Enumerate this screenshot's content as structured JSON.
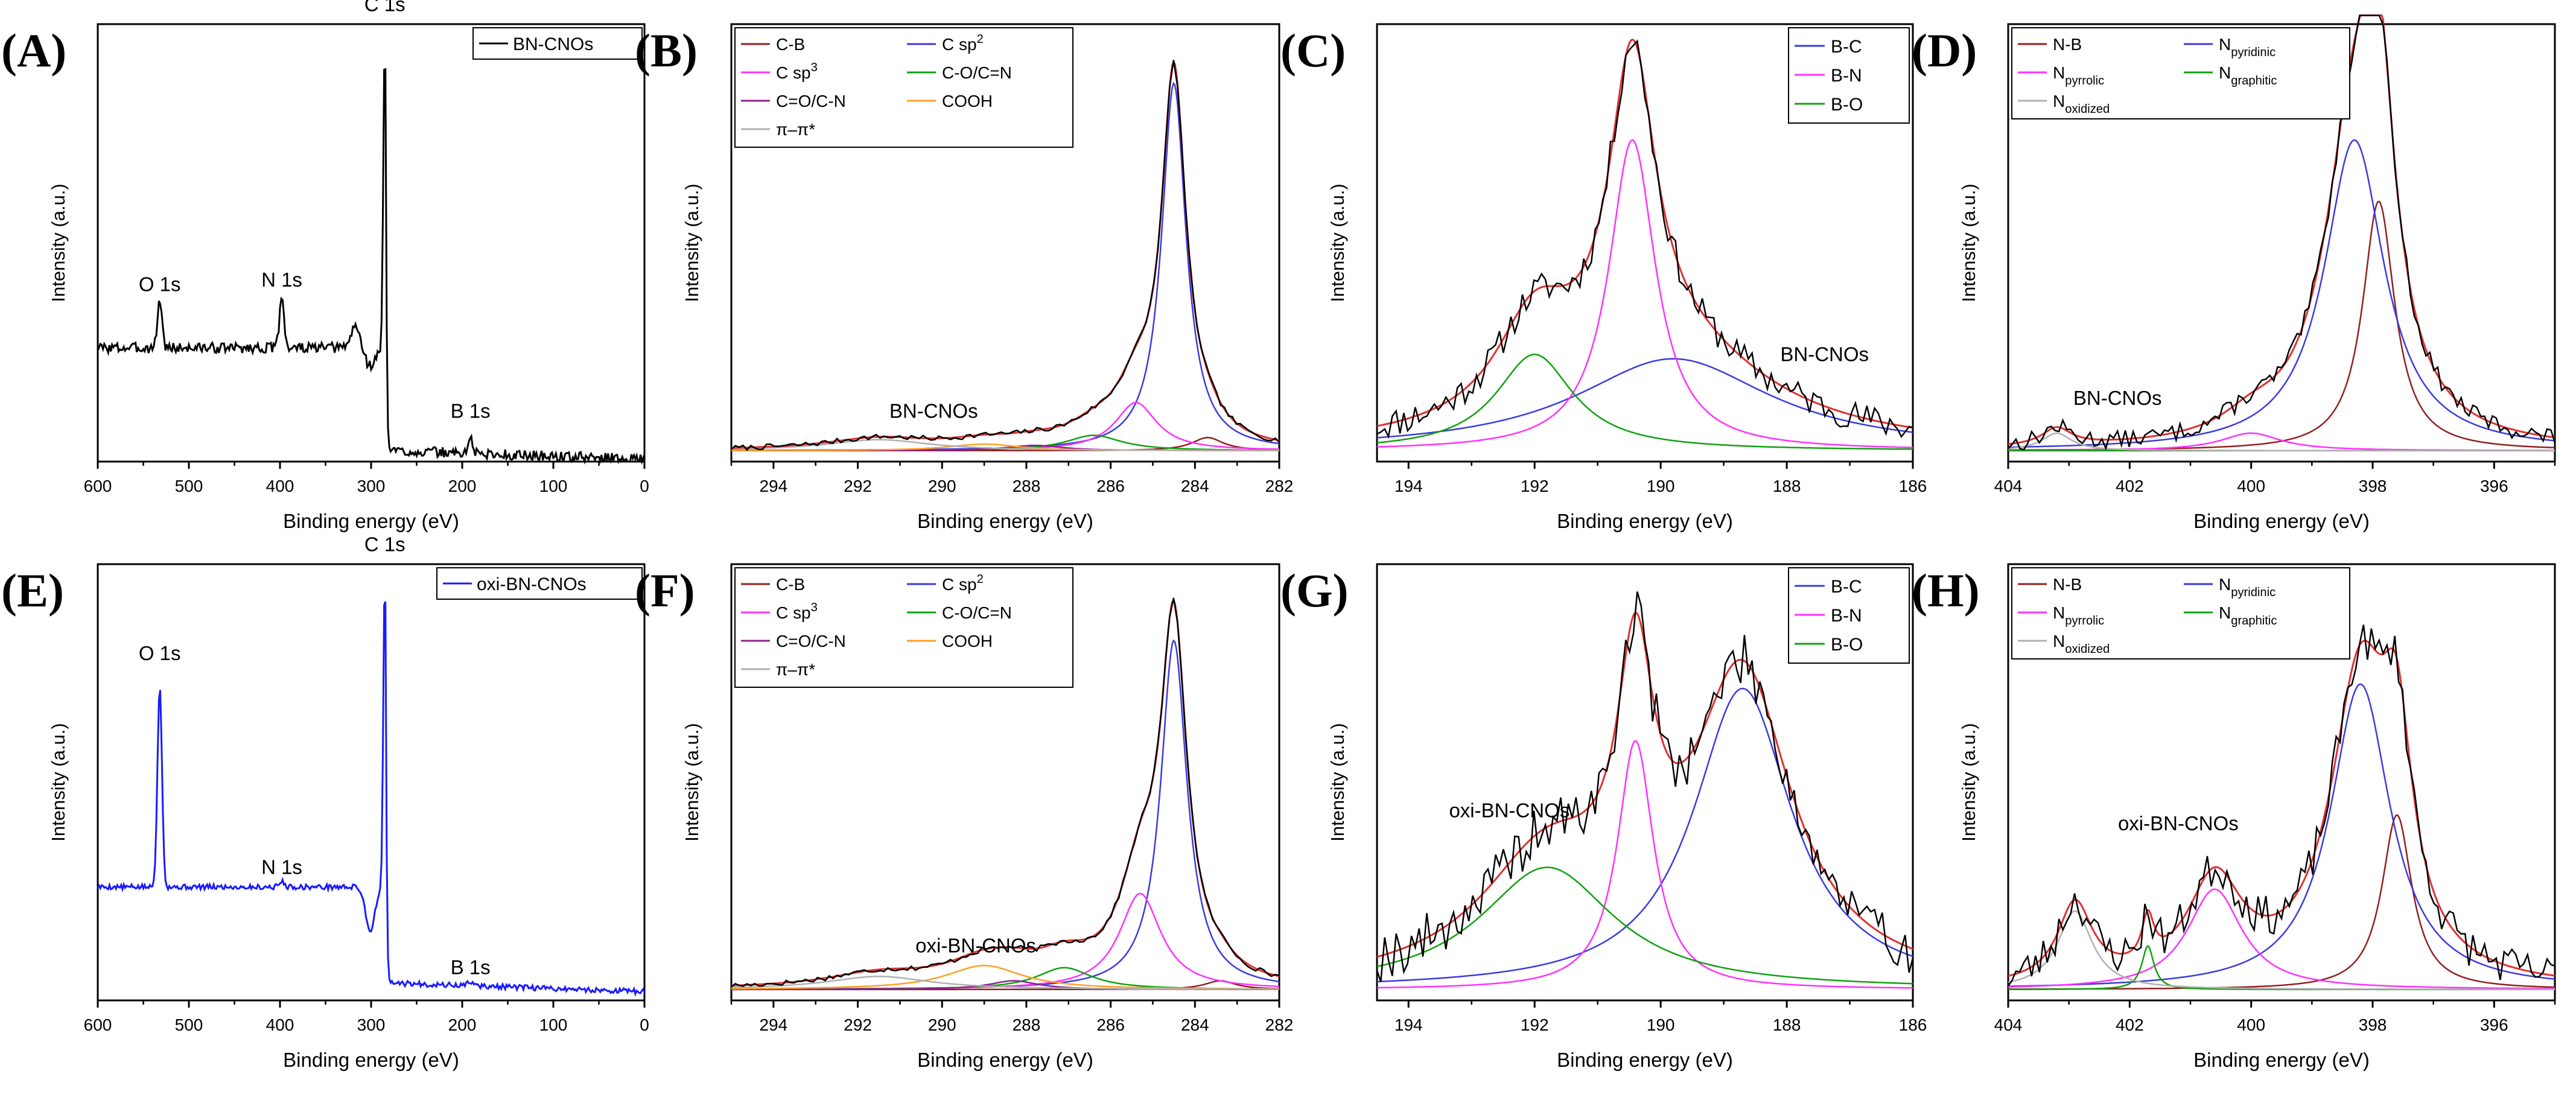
{
  "figure": {
    "palette": {
      "black": "#000000",
      "red": "#e03030",
      "blue": "#3a3ae0",
      "magenta": "#ff30ff",
      "green": "#10a010",
      "purple": "#902090",
      "orange": "#ffa020",
      "gray": "#b0b0b0",
      "survey_blue": "#1a1aff"
    }
  },
  "chart_data": [
    {
      "id": "A",
      "panel_label": "(A)",
      "type": "line",
      "xlabel": "Binding energy (eV)",
      "ylabel": "Intensity (a.u.)",
      "xlim": [
        600,
        0
      ],
      "xticks": [
        600,
        500,
        400,
        300,
        200,
        100,
        0
      ],
      "xtick_labels": [
        "600",
        "500",
        "400",
        "300",
        "200",
        "100",
        "0"
      ],
      "ylim": [
        0,
        1
      ],
      "legend_position": "top-right",
      "series": [
        {
          "name": "BN-CNOs",
          "kind": "survey",
          "color": "#000000",
          "baseline": 0.26,
          "noise": 0.012,
          "seed": 3,
          "step_at": 283,
          "right_level": 0.005,
          "peaks": [
            {
              "center": 532,
              "height": 0.11,
              "width": 2.5
            },
            {
              "center": 398,
              "height": 0.12,
              "width": 2.5
            },
            {
              "center": 317,
              "height": 0.05,
              "width": 5
            },
            {
              "center": 301,
              "height": -0.04,
              "width": 6
            },
            {
              "center": 285,
              "height": 0.7,
              "width": 1.6
            },
            {
              "center": 191,
              "height": 0.035,
              "width": 2.5
            }
          ]
        }
      ],
      "annotations": [
        {
          "text": "O 1s",
          "x": 532,
          "y": 0.39
        },
        {
          "text": "N 1s",
          "x": 398,
          "y": 0.4
        },
        {
          "text": "C 1s",
          "x": 285,
          "y": 1.03
        },
        {
          "text": "B 1s",
          "x": 191,
          "y": 0.1
        }
      ]
    },
    {
      "id": "B",
      "panel_label": "(B)",
      "type": "line",
      "xlabel": "Binding energy (eV)",
      "ylabel": "Intensity (a.u.)",
      "xlim": [
        295,
        282
      ],
      "xticks": [
        294,
        292,
        290,
        288,
        286,
        284,
        282
      ],
      "xtick_labels": [
        "294",
        "292",
        "290",
        "288",
        "286",
        "284",
        "282"
      ],
      "ylim": [
        0,
        1
      ],
      "legend_position": "top-left",
      "legend_columns": 2,
      "series": [
        {
          "name": "C-B",
          "kind": "peak",
          "color": "#902020",
          "center": 283.7,
          "height": 0.03,
          "width": 0.45
        },
        {
          "name": "C sp2",
          "kind": "peak",
          "color": "#3a3ae0",
          "center": 284.5,
          "height": 0.84,
          "width": 0.35
        },
        {
          "name": "C sp3",
          "kind": "peak",
          "color": "#ff30ff",
          "center": 285.4,
          "height": 0.11,
          "width": 0.6
        },
        {
          "name": "C-O/C=N",
          "kind": "peak",
          "color": "#10a010",
          "center": 286.4,
          "height": 0.035,
          "width": 0.8
        },
        {
          "name": "C=O/C-N",
          "kind": "peak",
          "color": "#902090",
          "center": 287.8,
          "height": 0.012,
          "width": 0.8
        },
        {
          "name": "COOH",
          "kind": "peak",
          "color": "#ffa020",
          "center": 289.0,
          "height": 0.015,
          "width": 1.0
        },
        {
          "name": "π–π*",
          "kind": "peak",
          "color": "#b0b0b0",
          "center": 291.5,
          "height": 0.025,
          "width": 1.5
        },
        {
          "name": "envelope",
          "kind": "envelope",
          "color": "#e03030"
        },
        {
          "name": "raw",
          "kind": "raw",
          "color": "#000000",
          "noise": 0.006,
          "seed": 7
        }
      ],
      "annotations": [
        {
          "text": "BN-CNOs",
          "x": 290.2,
          "y": 0.1
        }
      ]
    },
    {
      "id": "C",
      "panel_label": "(C)",
      "type": "line",
      "xlabel": "Binding energy (eV)",
      "ylabel": "Intensity (a.u.)",
      "xlim": [
        194.5,
        186
      ],
      "xticks": [
        194,
        192,
        190,
        188,
        186
      ],
      "xtick_labels": [
        "194",
        "192",
        "190",
        "188",
        "186"
      ],
      "ylim": [
        0,
        1
      ],
      "legend_position": "top-right",
      "legend_columns": 1,
      "series": [
        {
          "name": "B-C",
          "kind": "peak",
          "color": "#3a3ae0",
          "center": 189.8,
          "height": 0.21,
          "width": 1.9
        },
        {
          "name": "B-N",
          "kind": "peak",
          "color": "#ff30ff",
          "center": 190.45,
          "height": 0.71,
          "width": 0.45
        },
        {
          "name": "B-O",
          "kind": "peak",
          "color": "#10a010",
          "center": 192.0,
          "height": 0.22,
          "width": 0.75
        },
        {
          "name": "envelope",
          "kind": "envelope",
          "color": "#e03030"
        },
        {
          "name": "raw",
          "kind": "raw",
          "color": "#000000",
          "noise": 0.035,
          "seed": 11
        }
      ],
      "annotations": [
        {
          "text": "BN-CNOs",
          "x": 187.4,
          "y": 0.23
        }
      ]
    },
    {
      "id": "D",
      "panel_label": "(D)",
      "type": "line",
      "xlabel": "Binding energy (eV)",
      "ylabel": "Intensity (a.u.)",
      "xlim": [
        404,
        395
      ],
      "xticks": [
        404,
        402,
        400,
        398,
        396
      ],
      "xtick_labels": [
        "404",
        "402",
        "400",
        "398",
        "396"
      ],
      "ylim": [
        0,
        1
      ],
      "legend_position": "top-left",
      "legend_columns": 2,
      "series": [
        {
          "name": "N-B",
          "kind": "peak",
          "color": "#902020",
          "center": 397.9,
          "height": 0.57,
          "width": 0.32
        },
        {
          "name": "N pyridinic",
          "kind": "peak",
          "color": "#3a3ae0",
          "center": 398.3,
          "height": 0.71,
          "width": 0.6
        },
        {
          "name": "N pyrrolic",
          "kind": "peak",
          "color": "#ff30ff",
          "center": 400.0,
          "height": 0.04,
          "width": 0.6
        },
        {
          "name": "N graphitic",
          "kind": "peak",
          "color": "#10a010",
          "center": 401.5,
          "height": 0.0,
          "width": 0.5
        },
        {
          "name": "N oxidized",
          "kind": "peak",
          "color": "#b0b0b0",
          "center": 403.2,
          "height": 0.04,
          "width": 0.3
        },
        {
          "name": "envelope",
          "kind": "envelope",
          "color": "#e03030"
        },
        {
          "name": "raw",
          "kind": "raw",
          "color": "#000000",
          "noise": 0.02,
          "seed": 13
        }
      ],
      "annotations": [
        {
          "text": "BN-CNOs",
          "x": 402.2,
          "y": 0.13
        }
      ]
    },
    {
      "id": "E",
      "panel_label": "(E)",
      "type": "line",
      "xlabel": "Binding energy (eV)",
      "ylabel": "Intensity (a.u.)",
      "xlim": [
        600,
        0
      ],
      "xticks": [
        600,
        500,
        400,
        300,
        200,
        100,
        0
      ],
      "xtick_labels": [
        "600",
        "500",
        "400",
        "300",
        "200",
        "100",
        "0"
      ],
      "ylim": [
        0,
        1
      ],
      "legend_position": "top-right",
      "series": [
        {
          "name": "oxi-BN-CNOs",
          "kind": "survey",
          "color": "#1a1aff",
          "baseline": 0.26,
          "noise": 0.006,
          "seed": 5,
          "step_at": 283,
          "right_level": 0.02,
          "peaks": [
            {
              "center": 532,
              "height": 0.46,
              "width": 2.5
            },
            {
              "center": 398,
              "height": 0.012,
              "width": 3
            },
            {
              "center": 301,
              "height": -0.1,
              "width": 5
            },
            {
              "center": 285,
              "height": 0.72,
              "width": 1.6
            },
            {
              "center": 191,
              "height": 0.01,
              "width": 3
            }
          ]
        }
      ],
      "annotations": [
        {
          "text": "O 1s",
          "x": 532,
          "y": 0.78
        },
        {
          "text": "N 1s",
          "x": 398,
          "y": 0.29
        },
        {
          "text": "C 1s",
          "x": 285,
          "y": 1.03
        },
        {
          "text": "B 1s",
          "x": 191,
          "y": 0.06
        }
      ]
    },
    {
      "id": "F",
      "panel_label": "(F)",
      "type": "line",
      "xlabel": "Binding energy (eV)",
      "ylabel": "Intensity (a.u.)",
      "xlim": [
        295,
        282
      ],
      "xticks": [
        294,
        292,
        290,
        288,
        286,
        284,
        282
      ],
      "xtick_labels": [
        "294",
        "292",
        "290",
        "288",
        "286",
        "284",
        "282"
      ],
      "ylim": [
        0,
        1
      ],
      "legend_position": "top-left",
      "legend_columns": 2,
      "series": [
        {
          "name": "C-B",
          "kind": "peak",
          "color": "#902020",
          "center": 283.4,
          "height": 0.02,
          "width": 0.45
        },
        {
          "name": "C sp2",
          "kind": "peak",
          "color": "#3a3ae0",
          "center": 284.5,
          "height": 0.8,
          "width": 0.38
        },
        {
          "name": "C sp3",
          "kind": "peak",
          "color": "#ff30ff",
          "center": 285.3,
          "height": 0.22,
          "width": 0.6
        },
        {
          "name": "C-O/C=N",
          "kind": "peak",
          "color": "#10a010",
          "center": 287.1,
          "height": 0.05,
          "width": 0.8
        },
        {
          "name": "C=O/C-N",
          "kind": "peak",
          "color": "#902090",
          "center": 288.3,
          "height": 0.02,
          "width": 0.7
        },
        {
          "name": "COOH",
          "kind": "peak",
          "color": "#ffa020",
          "center": 289.0,
          "height": 0.055,
          "width": 1.1
        },
        {
          "name": "π–π*",
          "kind": "peak",
          "color": "#b0b0b0",
          "center": 291.5,
          "height": 0.03,
          "width": 1.5
        },
        {
          "name": "envelope",
          "kind": "envelope",
          "color": "#e03030"
        },
        {
          "name": "raw",
          "kind": "raw",
          "color": "#000000",
          "noise": 0.006,
          "seed": 17
        }
      ],
      "annotations": [
        {
          "text": "oxi-BN-CNOs",
          "x": 289.2,
          "y": 0.11
        }
      ]
    },
    {
      "id": "G",
      "panel_label": "(G)",
      "type": "line",
      "xlabel": "Binding energy (eV)",
      "ylabel": "Intensity (a.u.)",
      "xlim": [
        194.5,
        186
      ],
      "xticks": [
        194,
        192,
        190,
        188,
        186
      ],
      "xtick_labels": [
        "194",
        "192",
        "190",
        "188",
        "186"
      ],
      "ylim": [
        0,
        1
      ],
      "legend_position": "top-right",
      "legend_columns": 1,
      "series": [
        {
          "name": "B-C",
          "kind": "peak",
          "color": "#3a3ae0",
          "center": 188.7,
          "height": 0.69,
          "width": 0.95
        },
        {
          "name": "B-N",
          "kind": "peak",
          "color": "#ff30ff",
          "center": 190.4,
          "height": 0.57,
          "width": 0.35
        },
        {
          "name": "B-O",
          "kind": "peak",
          "color": "#10a010",
          "center": 191.8,
          "height": 0.28,
          "width": 1.3
        },
        {
          "name": "envelope",
          "kind": "envelope",
          "color": "#e03030"
        },
        {
          "name": "raw",
          "kind": "raw",
          "color": "#000000",
          "noise": 0.06,
          "seed": 19
        }
      ],
      "annotations": [
        {
          "text": "oxi-BN-CNOs",
          "x": 192.4,
          "y": 0.42
        }
      ]
    },
    {
      "id": "H",
      "panel_label": "(H)",
      "type": "line",
      "xlabel": "Binding energy (eV)",
      "ylabel": "Intensity (a.u.)",
      "xlim": [
        404,
        395
      ],
      "xticks": [
        404,
        402,
        400,
        398,
        396
      ],
      "xtick_labels": [
        "404",
        "402",
        "400",
        "398",
        "396"
      ],
      "ylim": [
        0,
        1
      ],
      "legend_position": "top-left",
      "legend_columns": 2,
      "series": [
        {
          "name": "N-B",
          "kind": "peak",
          "color": "#902020",
          "center": 397.6,
          "height": 0.4,
          "width": 0.3
        },
        {
          "name": "N pyridinic",
          "kind": "peak",
          "color": "#3a3ae0",
          "center": 398.2,
          "height": 0.7,
          "width": 0.6
        },
        {
          "name": "N pyrrolic",
          "kind": "peak",
          "color": "#ff30ff",
          "center": 400.6,
          "height": 0.23,
          "width": 0.55
        },
        {
          "name": "N graphitic",
          "kind": "peak",
          "color": "#10a010",
          "center": 401.7,
          "height": 0.1,
          "width": 0.12
        },
        {
          "name": "N oxidized",
          "kind": "peak",
          "color": "#b0b0b0",
          "center": 402.9,
          "height": 0.18,
          "width": 0.35
        },
        {
          "name": "envelope",
          "kind": "envelope",
          "color": "#e03030"
        },
        {
          "name": "raw",
          "kind": "raw",
          "color": "#000000",
          "noise": 0.045,
          "seed": 23
        }
      ],
      "annotations": [
        {
          "text": "oxi-BN-CNOs",
          "x": 401.2,
          "y": 0.39
        }
      ]
    }
  ]
}
